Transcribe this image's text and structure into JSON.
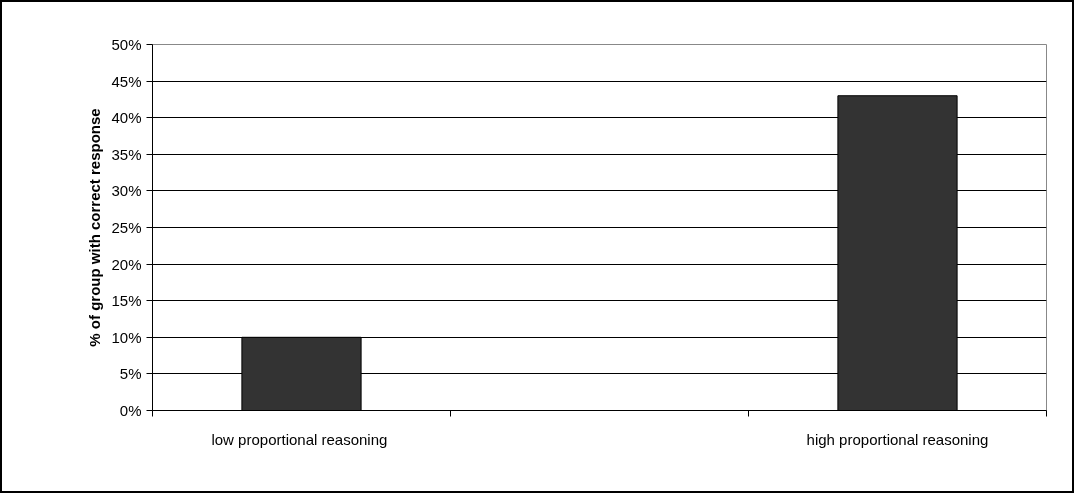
{
  "chart_data": {
    "type": "bar",
    "categories": [
      "low  proportional reasoning",
      null,
      "high proportional reasoning"
    ],
    "values": [
      10,
      null,
      43
    ],
    "color": "#333333",
    "ylabel": "% of group with correct response",
    "ylim": [
      0,
      50
    ],
    "yticks": [
      {
        "value": 0,
        "label": "0%"
      },
      {
        "value": 5,
        "label": "5%"
      },
      {
        "value": 10,
        "label": "10%"
      },
      {
        "value": 15,
        "label": "15%"
      },
      {
        "value": 20,
        "label": "20%"
      },
      {
        "value": 25,
        "label": "25%"
      },
      {
        "value": 30,
        "label": "30%"
      },
      {
        "value": 35,
        "label": "35%"
      },
      {
        "value": 40,
        "label": "40%"
      },
      {
        "value": 45,
        "label": "45%"
      },
      {
        "value": 50,
        "label": "50%"
      }
    ],
    "grid": "y"
  }
}
